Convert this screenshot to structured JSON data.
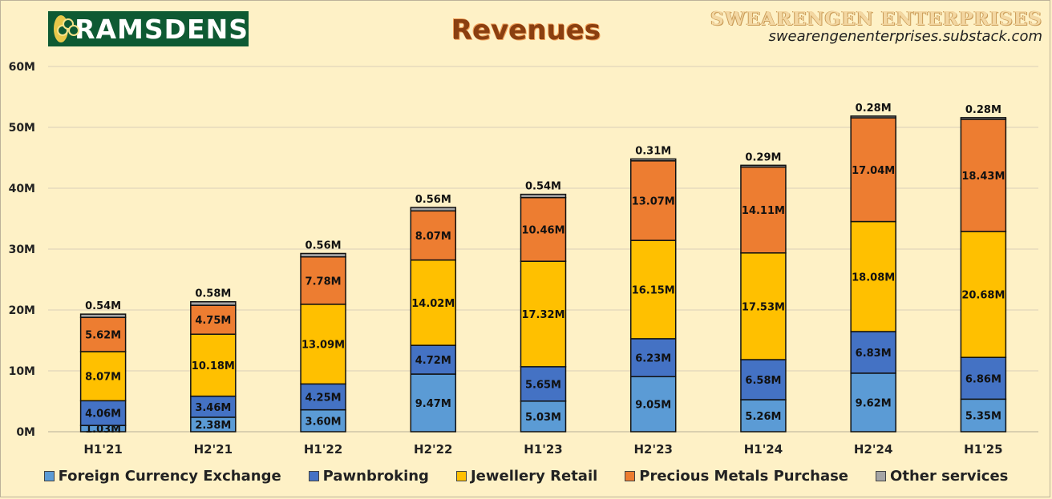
{
  "header": {
    "logo_text": "RAMSDENS",
    "title": "Revenues",
    "brand_name": "SWEARENGEN ENTERPRISES",
    "brand_url": "swearengenenterprises.substack.com"
  },
  "colors": {
    "background": "#fef1c6",
    "series": [
      "#5b9bd5",
      "#4472c4",
      "#ffc000",
      "#ed7d31",
      "#a5a5a5"
    ]
  },
  "chart_data": {
    "type": "bar",
    "stacked": true,
    "title": "Revenues",
    "xlabel": "",
    "ylabel": "",
    "ylim": [
      0,
      60
    ],
    "y_ticks": [
      "0M",
      "10M",
      "20M",
      "30M",
      "40M",
      "50M",
      "60M"
    ],
    "grid": true,
    "legend_position": "bottom",
    "categories": [
      "H1'21",
      "H2'21",
      "H1'22",
      "H2'22",
      "H1'23",
      "H2'23",
      "H1'24",
      "H2'24",
      "H1'25"
    ],
    "series": [
      {
        "name": "Foreign Currency Exchange",
        "values": [
          1.03,
          2.38,
          3.6,
          9.47,
          5.03,
          9.05,
          5.26,
          9.62,
          5.35
        ],
        "labels": [
          "1.03M",
          "2.38M",
          "3.60M",
          "9.47M",
          "5.03M",
          "9.05M",
          "5.26M",
          "9.62M",
          "5.35M"
        ]
      },
      {
        "name": "Pawnbroking",
        "values": [
          4.06,
          3.46,
          4.25,
          4.72,
          5.65,
          6.23,
          6.58,
          6.83,
          6.86
        ],
        "labels": [
          "4.06M",
          "3.46M",
          "4.25M",
          "4.72M",
          "5.65M",
          "6.23M",
          "6.58M",
          "6.83M",
          "6.86M"
        ]
      },
      {
        "name": "Jewellery Retail",
        "values": [
          8.07,
          10.18,
          13.09,
          14.02,
          17.32,
          16.15,
          17.53,
          18.08,
          20.68
        ],
        "labels": [
          "8.07M",
          "10.18M",
          "13.09M",
          "14.02M",
          "17.32M",
          "16.15M",
          "17.53M",
          "18.08M",
          "20.68M"
        ]
      },
      {
        "name": "Precious Metals Purchase",
        "values": [
          5.62,
          4.75,
          7.78,
          8.07,
          10.46,
          13.07,
          14.11,
          17.04,
          18.43
        ],
        "labels": [
          "5.62M",
          "4.75M",
          "7.78M",
          "8.07M",
          "10.46M",
          "13.07M",
          "14.11M",
          "17.04M",
          "18.43M"
        ]
      },
      {
        "name": "Other services",
        "values": [
          0.54,
          0.58,
          0.56,
          0.56,
          0.54,
          0.31,
          0.29,
          0.28,
          0.28
        ],
        "labels": [
          "0.54M",
          "0.58M",
          "0.56M",
          "0.56M",
          "0.54M",
          "0.31M",
          "0.29M",
          "0.28M",
          "0.28M"
        ]
      }
    ]
  }
}
